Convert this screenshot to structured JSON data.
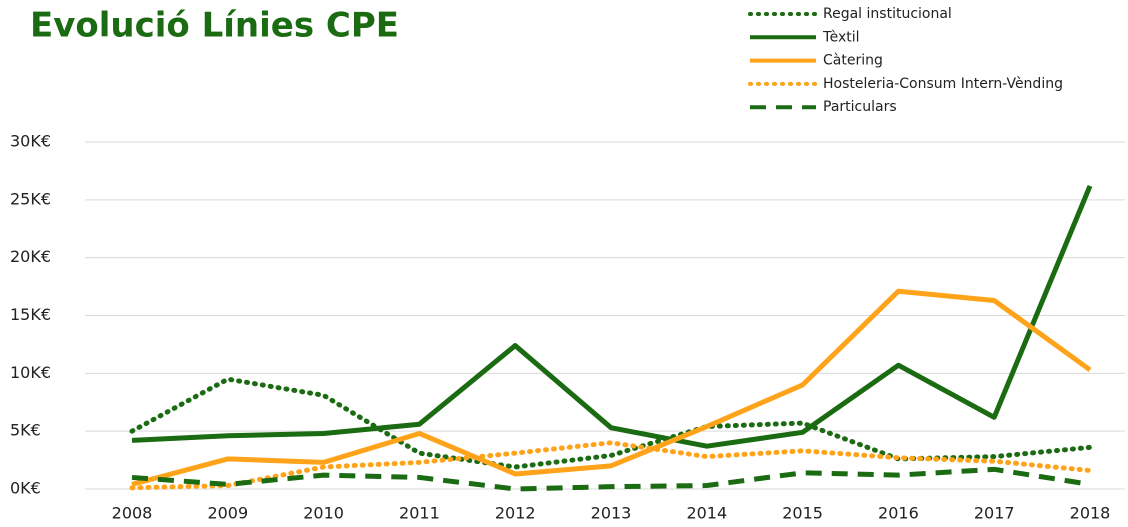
{
  "chart_data": {
    "type": "line",
    "title": "Evolució Línies CPE",
    "categories": [
      "2008",
      "2009",
      "2010",
      "2011",
      "2012",
      "2013",
      "2014",
      "2015",
      "2016",
      "2017",
      "2018"
    ],
    "series": [
      {
        "name": "Regal institucional",
        "color": "#1b6b12",
        "dash": "dotted",
        "values": [
          5.0,
          9.5,
          8.1,
          3.1,
          1.9,
          2.9,
          5.4,
          5.7,
          2.6,
          2.8,
          3.6
        ]
      },
      {
        "name": "Tèxtil",
        "color": "#1b6b12",
        "dash": "solid",
        "values": [
          4.2,
          4.6,
          4.8,
          5.6,
          12.4,
          5.3,
          3.7,
          4.9,
          10.7,
          6.2,
          26.2
        ]
      },
      {
        "name": "Càtering",
        "color": "#ffa31a",
        "dash": "solid",
        "values": [
          0.4,
          2.6,
          2.3,
          4.8,
          1.3,
          2.0,
          5.4,
          9.0,
          17.1,
          16.3,
          10.3
        ]
      },
      {
        "name": "Hosteleria-Consum Intern-Vènding",
        "color": "#ffa31a",
        "dash": "dotted",
        "values": [
          0.1,
          0.3,
          1.9,
          2.3,
          3.1,
          4.0,
          2.8,
          3.3,
          2.7,
          2.4,
          1.6
        ]
      },
      {
        "name": "Particulars",
        "color": "#1b6b12",
        "dash": "dashed",
        "values": [
          1.0,
          0.4,
          1.2,
          1.0,
          0.0,
          0.2,
          0.3,
          1.4,
          1.2,
          1.7,
          0.4
        ]
      }
    ],
    "ylim": [
      0,
      30
    ],
    "yticks": [
      {
        "value": 0,
        "label": "0K€"
      },
      {
        "value": 5,
        "label": "5K€"
      },
      {
        "value": 10,
        "label": "10K€"
      },
      {
        "value": 15,
        "label": "15K€"
      },
      {
        "value": 20,
        "label": "20K€"
      },
      {
        "value": 25,
        "label": "25K€"
      },
      {
        "value": 30,
        "label": "30K€"
      }
    ],
    "grid": true,
    "legend": "top-right"
  }
}
